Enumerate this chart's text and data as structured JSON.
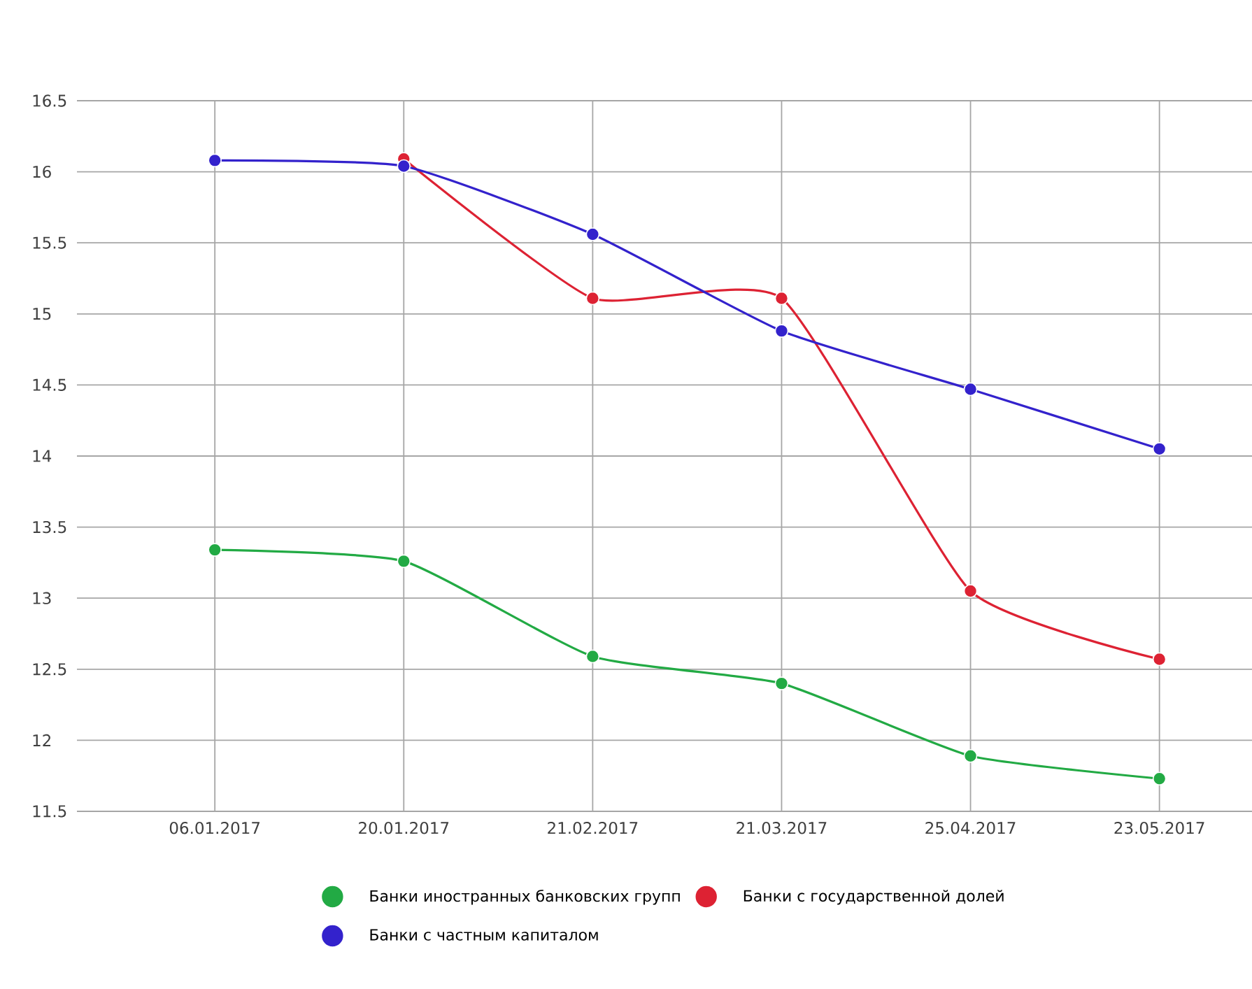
{
  "chart_data": {
    "type": "line",
    "categories": [
      "06.01.2017",
      "20.01.2017",
      "21.02.2017",
      "21.03.2017",
      "25.04.2017",
      "23.05.2017"
    ],
    "series": [
      {
        "name": "Банки иностранных банковских групп",
        "color": "#22aa44",
        "values": [
          13.34,
          13.26,
          12.59,
          12.4,
          11.89,
          11.73
        ]
      },
      {
        "name": "Банки с государственной долей",
        "color": "#dd2233",
        "values": [
          null,
          16.09,
          15.11,
          15.11,
          13.05,
          12.57
        ]
      },
      {
        "name": "Банки с частным капиталом",
        "color": "#3322cc",
        "values": [
          16.08,
          16.04,
          15.56,
          14.88,
          14.47,
          14.05
        ]
      }
    ],
    "ylim": [
      11.5,
      16.5
    ],
    "yticks": [
      11.5,
      12,
      12.5,
      13,
      13.5,
      14,
      14.5,
      15,
      15.5,
      16,
      16.5
    ],
    "grid": true,
    "legend": "bottom",
    "marker": "circle"
  }
}
